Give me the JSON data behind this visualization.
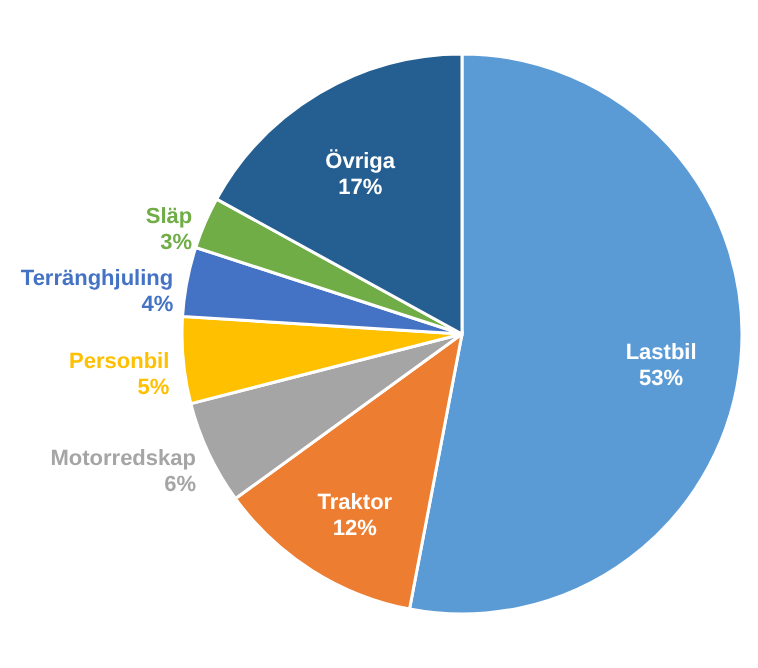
{
  "chart_data": {
    "type": "pie",
    "categories": [
      "Lastbil",
      "Traktor",
      "Motorredskap",
      "Personbil",
      "Terränghjuling",
      "Släp",
      "Övriga"
    ],
    "values": [
      53,
      12,
      6,
      5,
      4,
      3,
      17
    ],
    "value_labels": [
      "53%",
      "12%",
      "6%",
      "5%",
      "4%",
      "3%",
      "17%"
    ],
    "colors": [
      "#5b9bd5",
      "#ed7d31",
      "#a5a5a5",
      "#ffc000",
      "#4472c4",
      "#70ad47",
      "#255e91"
    ]
  }
}
